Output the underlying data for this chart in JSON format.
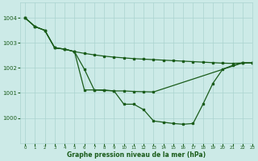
{
  "background_color": "#cceae7",
  "grid_color": "#aad4d0",
  "line_color": "#1a5c1a",
  "title": "Graphe pression niveau de la mer (hPa)",
  "xlim": [
    -0.5,
    23
  ],
  "ylim": [
    999.0,
    1004.6
  ],
  "yticks": [
    1000,
    1001,
    1002,
    1003,
    1004
  ],
  "xticks": [
    0,
    1,
    2,
    3,
    4,
    5,
    6,
    7,
    8,
    9,
    10,
    11,
    12,
    13,
    14,
    15,
    16,
    17,
    18,
    19,
    20,
    21,
    22,
    23
  ],
  "series1": {
    "x": [
      0,
      1,
      2,
      3,
      4,
      5,
      6,
      7,
      8,
      9,
      10,
      11,
      12,
      13,
      14,
      15,
      16,
      17,
      18,
      19,
      20,
      21,
      22,
      23
    ],
    "y": [
      1004.0,
      1003.65,
      1003.5,
      1002.8,
      1002.75,
      1002.65,
      1002.58,
      1002.52,
      1002.47,
      1002.43,
      1002.4,
      1002.37,
      1002.35,
      1002.33,
      1002.31,
      1002.29,
      1002.27,
      1002.25,
      1002.23,
      1002.21,
      1002.19,
      1002.18,
      1002.2,
      1002.2
    ]
  },
  "series2": {
    "x": [
      0,
      1,
      2,
      3,
      4,
      5,
      6,
      7,
      8,
      9,
      10,
      11,
      12,
      13,
      22,
      23
    ],
    "y": [
      1004.0,
      1003.65,
      1003.5,
      1002.8,
      1002.75,
      1002.65,
      1001.12,
      1001.12,
      1001.1,
      1001.08,
      1001.08,
      1001.06,
      1001.05,
      1001.04,
      1002.2,
      1002.2
    ]
  },
  "series3": {
    "x": [
      0,
      1,
      2,
      3,
      4,
      5,
      6,
      7,
      8,
      9,
      10,
      11,
      12,
      13,
      14,
      15,
      16,
      17,
      18,
      19,
      20,
      21,
      22,
      23
    ],
    "y": [
      1004.0,
      1003.65,
      1003.5,
      1002.8,
      1002.75,
      1002.65,
      1001.95,
      1001.12,
      1001.12,
      1001.08,
      1000.55,
      1000.55,
      1000.33,
      999.88,
      999.83,
      999.78,
      999.75,
      999.78,
      1000.55,
      1001.38,
      1001.95,
      1002.1,
      1002.2,
      1002.2
    ]
  }
}
